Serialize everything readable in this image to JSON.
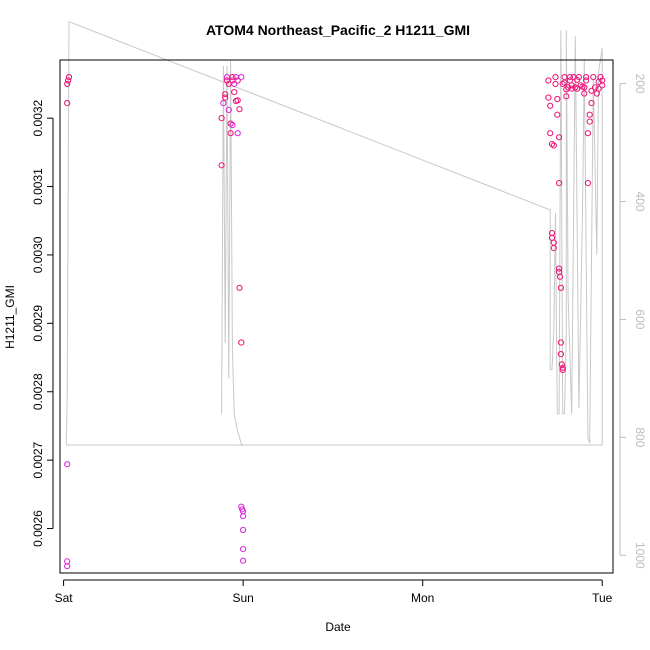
{
  "chart_data": {
    "type": "scatter",
    "title": "ATOM4 Northeast_Pacific_2 H1211_GMI",
    "xlabel": "Date",
    "ylabel": "H1211_GMI",
    "x_ticks": [
      "Sat",
      "Sun",
      "Mon",
      "Tue"
    ],
    "x_range_days": [
      -0.02,
      3.06
    ],
    "y_ticks": [
      "0.0026",
      "0.0027",
      "0.0028",
      "0.0029",
      "0.0030",
      "0.0031",
      "0.0032"
    ],
    "ylim": [
      0.002535,
      0.003285
    ],
    "y2_ticks": [
      "200",
      "400",
      "600",
      "800",
      "1000"
    ],
    "y2lim": [
      1030,
      160
    ],
    "y2_reversed": true,
    "grid": false,
    "colors": {
      "points": "#ee1177",
      "points_alt": "#dd22dd",
      "line": "#c8c8c8",
      "axis": "#000000",
      "right_axis": "#bdbdbd"
    },
    "series": [
      {
        "points": [
          [
            0.02,
            0.002545
          ],
          [
            0.02,
            0.002552
          ],
          [
            0.02,
            0.002694
          ],
          [
            0.02,
            0.003222
          ],
          [
            0.02,
            0.00325
          ],
          [
            0.025,
            0.003255
          ],
          [
            0.03,
            0.00326
          ],
          [
            0.88,
            0.003131
          ],
          [
            0.88,
            0.0032
          ],
          [
            0.89,
            0.003222
          ],
          [
            0.9,
            0.00323
          ],
          [
            0.9,
            0.003235
          ],
          [
            0.91,
            0.00326
          ],
          [
            0.91,
            0.003255
          ],
          [
            0.92,
            0.00325
          ],
          [
            0.92,
            0.003212
          ],
          [
            0.93,
            0.003192
          ],
          [
            0.93,
            0.003178
          ],
          [
            0.94,
            0.00319
          ],
          [
            0.94,
            0.003255
          ],
          [
            0.94,
            0.00326
          ],
          [
            0.95,
            0.00325
          ],
          [
            0.95,
            0.003238
          ],
          [
            0.96,
            0.003225
          ],
          [
            0.96,
            0.00326
          ],
          [
            0.97,
            0.003255
          ],
          [
            0.97,
            0.003226
          ],
          [
            0.97,
            0.003178
          ],
          [
            0.98,
            0.003213
          ],
          [
            0.98,
            0.002952
          ],
          [
            0.99,
            0.00326
          ],
          [
            0.99,
            0.002872
          ],
          [
            0.99,
            0.002632
          ],
          [
            0.995,
            0.002628
          ],
          [
            1.0,
            0.002625
          ],
          [
            1.0,
            0.002618
          ],
          [
            1.0,
            0.002598
          ],
          [
            1.0,
            0.00257
          ],
          [
            1.0,
            0.002553
          ],
          [
            2.7,
            0.003255
          ],
          [
            2.7,
            0.00323
          ],
          [
            2.71,
            0.003218
          ],
          [
            2.71,
            0.003178
          ],
          [
            2.72,
            0.003162
          ],
          [
            2.73,
            0.00316
          ],
          [
            2.72,
            0.003032
          ],
          [
            2.72,
            0.003025
          ],
          [
            2.73,
            0.003018
          ],
          [
            2.73,
            0.00301
          ],
          [
            2.74,
            0.00325
          ],
          [
            2.74,
            0.00326
          ],
          [
            2.75,
            0.003228
          ],
          [
            2.75,
            0.003205
          ],
          [
            2.76,
            0.003105
          ],
          [
            2.76,
            0.003172
          ],
          [
            2.76,
            0.00298
          ],
          [
            2.76,
            0.002975
          ],
          [
            2.765,
            0.002968
          ],
          [
            2.77,
            0.002952
          ],
          [
            2.77,
            0.002872
          ],
          [
            2.77,
            0.002855
          ],
          [
            2.775,
            0.00284
          ],
          [
            2.78,
            0.002835
          ],
          [
            2.78,
            0.002832
          ],
          [
            2.78,
            0.00325
          ],
          [
            2.79,
            0.00326
          ],
          [
            2.79,
            0.003252
          ],
          [
            2.8,
            0.003232
          ],
          [
            2.8,
            0.003242
          ],
          [
            2.81,
            0.003245
          ],
          [
            2.82,
            0.00326
          ],
          [
            2.82,
            0.003255
          ],
          [
            2.83,
            0.003248
          ],
          [
            2.83,
            0.003243
          ],
          [
            2.84,
            0.00326
          ],
          [
            2.85,
            0.003245
          ],
          [
            2.86,
            0.003256
          ],
          [
            2.86,
            0.003243
          ],
          [
            2.87,
            0.00326
          ],
          [
            2.88,
            0.003248
          ],
          [
            2.89,
            0.003246
          ],
          [
            2.9,
            0.003236
          ],
          [
            2.9,
            0.003245
          ],
          [
            2.91,
            0.003255
          ],
          [
            2.91,
            0.00326
          ],
          [
            2.92,
            0.003105
          ],
          [
            2.92,
            0.003178
          ],
          [
            2.93,
            0.003195
          ],
          [
            2.93,
            0.003205
          ],
          [
            2.94,
            0.003222
          ],
          [
            2.94,
            0.00324
          ],
          [
            2.95,
            0.00326
          ],
          [
            2.96,
            0.003245
          ],
          [
            2.97,
            0.003236
          ],
          [
            2.98,
            0.003243
          ],
          [
            2.98,
            0.003253
          ],
          [
            2.99,
            0.00326
          ],
          [
            3.0,
            0.003248
          ],
          [
            3.0,
            0.003255
          ]
        ]
      },
      {
        "axis": "right",
        "line": [
          [
            0.015,
            813
          ],
          [
            0.02,
            730
          ],
          [
            0.03,
            95
          ],
          [
            2.7,
            413
          ],
          [
            2.71,
            413
          ],
          [
            2.71,
            685
          ],
          [
            2.72,
            685
          ],
          [
            2.73,
            620
          ],
          [
            2.74,
            420
          ],
          [
            2.745,
            615
          ],
          [
            2.75,
            760
          ],
          [
            2.76,
            760
          ],
          [
            2.77,
            110
          ],
          [
            2.78,
            760
          ],
          [
            2.79,
            760
          ],
          [
            2.8,
            620
          ],
          [
            2.8,
            110
          ],
          [
            2.81,
            560
          ],
          [
            2.83,
            760
          ],
          [
            2.85,
            120
          ],
          [
            2.87,
            750
          ],
          [
            2.89,
            420
          ],
          [
            2.9,
            160
          ],
          [
            2.92,
            800
          ],
          [
            2.93,
            810
          ],
          [
            2.95,
            190
          ],
          [
            2.97,
            490
          ],
          [
            2.98,
            180
          ],
          [
            3.0,
            140
          ],
          [
            3.0,
            813
          ],
          [
            0.015,
            813
          ]
        ],
        "line_sun": [
          [
            0.88,
            760
          ],
          [
            0.89,
            170
          ],
          [
            0.9,
            640
          ],
          [
            0.91,
            170
          ],
          [
            0.92,
            700
          ],
          [
            0.93,
            160
          ],
          [
            0.94,
            650
          ],
          [
            0.95,
            760
          ],
          [
            0.97,
            790
          ],
          [
            0.98,
            800
          ],
          [
            0.99,
            812
          ],
          [
            1.0,
            812
          ]
        ]
      }
    ]
  }
}
